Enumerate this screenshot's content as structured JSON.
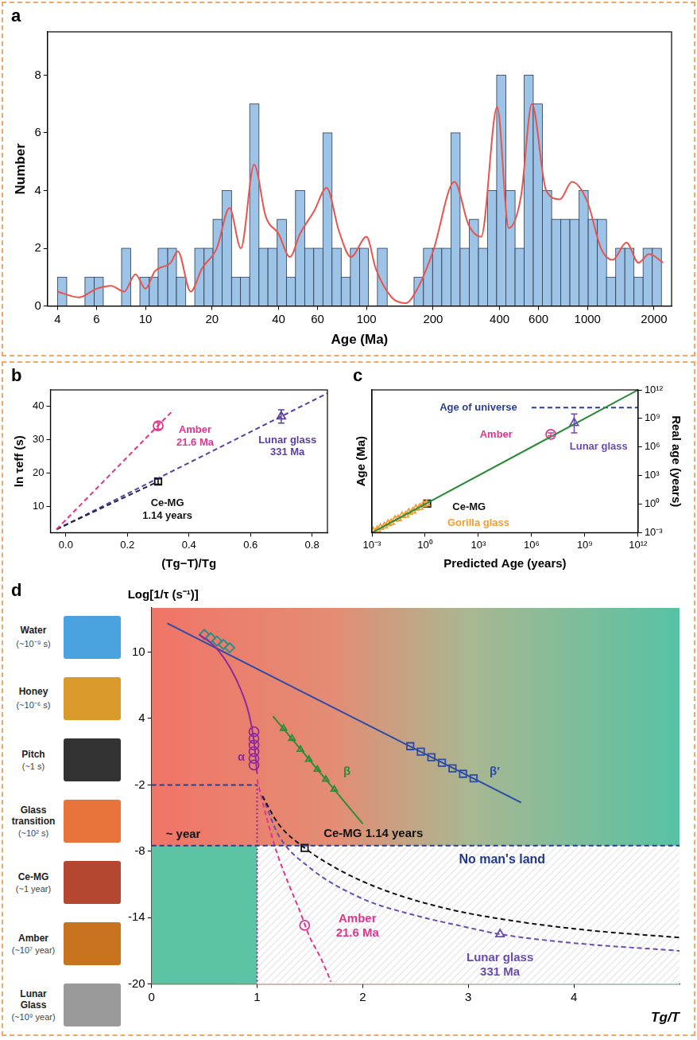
{
  "chart_data": [
    {
      "type": "histogram",
      "title": "a",
      "xlabel": "Age (Ma)",
      "ylabel": "Number",
      "log": "x",
      "grid": false,
      "bins": [
        4.0,
        4.4,
        4.84,
        5.32,
        5.86,
        6.44,
        7.09,
        7.79,
        8.57,
        9.43,
        10.4,
        11.4,
        12.6,
        13.8,
        15.2,
        16.7,
        18.4,
        20.2,
        22.2,
        24.5,
        26.9,
        29.6,
        32.6,
        35.8,
        39.4,
        43.4,
        47.7,
        52.5,
        57.7,
        63.5,
        69.8,
        76.8,
        84.5,
        93.0,
        102,
        112,
        124,
        136,
        150,
        164,
        181,
        199,
        219,
        241,
        265,
        292,
        321,
        353,
        388,
        427,
        470,
        517,
        568,
        625,
        688,
        757,
        832,
        916,
        1007,
        1108,
        1219,
        1341,
        1475,
        1622,
        1784,
        1963,
        2159
      ],
      "values": [
        1,
        0,
        0,
        1,
        1,
        0,
        0,
        2,
        0,
        1,
        1,
        2,
        2,
        1,
        0,
        2,
        2,
        3,
        4,
        1,
        1,
        7,
        2,
        2,
        3,
        1,
        4,
        2,
        2,
        6,
        2,
        1,
        2,
        2,
        0,
        2,
        0,
        0,
        0,
        1,
        2,
        2,
        2,
        6,
        2,
        3,
        2,
        4,
        8,
        4,
        2,
        8,
        7,
        4,
        3,
        3,
        3,
        4,
        3,
        3,
        1,
        2,
        2,
        1,
        2,
        2
      ],
      "color": "#9dc3e6",
      "series": [
        {
          "type": "line",
          "color": "#e8544e",
          "x": [
            4,
            5,
            6,
            7,
            8,
            9,
            10,
            11,
            13,
            14,
            16,
            18,
            21,
            24,
            27,
            31,
            35,
            40,
            45,
            50,
            58,
            66,
            75,
            85,
            100,
            110,
            130,
            150,
            170,
            200,
            250,
            290,
            330,
            390,
            440,
            500,
            560,
            650,
            750,
            850,
            1000,
            1150,
            1300,
            1500,
            1700,
            1900,
            2200
          ],
          "values": [
            0.5,
            0.3,
            0.6,
            0.7,
            0.5,
            1.1,
            0.6,
            1.2,
            1.5,
            1.9,
            0.5,
            1.3,
            2.0,
            3.4,
            2.0,
            4.9,
            3.1,
            2.5,
            1.7,
            2.5,
            3.3,
            4.1,
            2.6,
            1.7,
            2.4,
            1.3,
            0.3,
            0.1,
            0.6,
            1.9,
            4.3,
            2.8,
            2.4,
            6.9,
            2.7,
            3.8,
            7.0,
            4.0,
            3.7,
            4.3,
            3.6,
            2.0,
            1.6,
            2.2,
            1.5,
            1.8,
            1.5
          ]
        }
      ],
      "xlim": [
        3.6,
        2400
      ],
      "xticks": [
        4,
        6,
        10,
        20,
        40,
        60,
        100,
        200,
        400,
        600,
        1000,
        2000
      ],
      "ylim": [
        0,
        9.5
      ],
      "yticks": [
        0,
        2,
        4,
        6,
        8
      ]
    },
    {
      "type": "scatter",
      "title": "b",
      "xlabel": "(Tg−T)/Tg",
      "ylabel": "ln τeff (s)",
      "grid": false,
      "xlim": [
        -0.05,
        0.85
      ],
      "xticks": [
        {
          "value": 0,
          "label": "0.0"
        },
        0.2,
        0.4,
        0.6,
        0.8
      ],
      "ylim": [
        2,
        45
      ],
      "yticks": [
        10,
        20,
        30,
        40
      ],
      "series": [
        {
          "type": "line",
          "line_style": "dashed",
          "color": "#e0358f",
          "x": [
            -0.03,
            0.35
          ],
          "values": [
            3,
            39
          ]
        },
        {
          "type": "line",
          "line_style": "dashed",
          "color": "#222244",
          "x": [
            -0.03,
            0.3
          ],
          "values": [
            3,
            17.4
          ]
        },
        {
          "type": "line",
          "line_style": "dashed",
          "color": "#5a3fa0",
          "x": [
            -0.03,
            0.85
          ],
          "values": [
            3,
            44
          ]
        },
        {
          "type": "scatter",
          "marker": "circle",
          "color": "#e0358f",
          "x": [
            0.3
          ],
          "values": [
            34.2
          ],
          "error": [
            1.0
          ]
        },
        {
          "type": "scatter",
          "marker": "square",
          "color": "#111111",
          "x": [
            0.3
          ],
          "values": [
            17.4
          ],
          "error": [
            0.8
          ]
        },
        {
          "type": "scatter",
          "marker": "triangle",
          "color": "#5a3fa0",
          "x": [
            0.7
          ],
          "values": [
            37
          ],
          "error": [
            2.0
          ]
        }
      ],
      "annotations": [
        {
          "text": "Amber\n21.6 Ma",
          "x": 0.42,
          "y": 31,
          "color": "#e0358f"
        },
        {
          "text": "Ce-MG\n1.14 years",
          "x": 0.33,
          "y": 9,
          "color": "#111111"
        },
        {
          "text": "Lunar glass\n331 Ma",
          "x": 0.72,
          "y": 28,
          "color": "#5a3fa0"
        }
      ]
    },
    {
      "type": "scatter",
      "title": "c",
      "log": true,
      "grid": false,
      "xlabel": "Predicted Age (years)",
      "ylabel": "Age (Ma)",
      "y2label": "Real age (years)",
      "xlim": [
        0.001,
        1000000000000
      ],
      "xticks": [
        {
          "value": 0.001,
          "label": "10⁻³"
        },
        {
          "value": 1,
          "label": "10⁰"
        },
        {
          "value": 1000,
          "label": "10³"
        },
        {
          "value": 1000000,
          "label": "10⁶"
        },
        {
          "value": 1000000000,
          "label": "10⁹"
        },
        {
          "value": 1000000000000,
          "label": "10¹²"
        }
      ],
      "y2lim": [
        0.001,
        1000000000000
      ],
      "y2ticks": [
        {
          "value": 0.001,
          "label": "10⁻³"
        },
        {
          "value": 1,
          "label": "10⁰"
        },
        {
          "value": 1000,
          "label": "10³"
        },
        {
          "value": 1000000,
          "label": "10⁶"
        },
        {
          "value": 1000000000,
          "label": "10⁹"
        },
        {
          "value": 1000000000000,
          "label": "10¹²"
        }
      ],
      "series": [
        {
          "type": "line",
          "color": "#2e8b3a",
          "axis": "y2",
          "x": [
            0.001,
            1000000000000
          ],
          "values": [
            0.001,
            1000000000000
          ]
        },
        {
          "type": "line",
          "line_style": "dashed",
          "color": "#2b3f8f",
          "axis": "y2",
          "x": [
            1000000,
            1000000000000
          ],
          "values": [
            13800000000,
            13800000000
          ]
        },
        {
          "type": "scatter",
          "marker": "triangle",
          "color": "#f39c32",
          "axis": "y2",
          "x": [
            0.0012,
            0.002,
            0.003,
            0.005,
            0.008,
            0.012,
            0.02,
            0.03,
            0.05,
            0.08,
            0.12,
            0.2,
            0.3,
            0.5,
            0.8,
            1.2
          ],
          "values": [
            0.0015,
            0.002,
            0.0035,
            0.005,
            0.009,
            0.011,
            0.025,
            0.03,
            0.06,
            0.07,
            0.14,
            0.18,
            0.35,
            0.45,
            0.9,
            1.1
          ]
        },
        {
          "type": "scatter",
          "marker": "square",
          "color": "#111111",
          "axis": "y2",
          "x": [
            1.3
          ],
          "values": [
            1.14
          ]
        },
        {
          "type": "scatter",
          "marker": "circle",
          "color": "#e0358f",
          "axis": "y2",
          "x": [
            12000000
          ],
          "values": [
            21600000
          ],
          "error_range": [
            [
              15000000,
              30000000
            ]
          ]
        },
        {
          "type": "scatter",
          "marker": "triangle",
          "color": "#6a4bb0",
          "axis": "y2",
          "x": [
            250000000
          ],
          "values": [
            331000000
          ],
          "error_range": [
            [
              30000000,
              3000000000
            ]
          ]
        }
      ],
      "annotations": [
        {
          "text": "Age of universe",
          "x": 1000,
          "y": 13800000000,
          "color": "#2b3f8f"
        },
        {
          "text": "Amber",
          "x": 10000,
          "y": 20000000,
          "color": "#e0358f"
        },
        {
          "text": "Lunar glass",
          "x": 6000000000,
          "y": 1000000,
          "color": "#6a4bb0"
        },
        {
          "text": "Ce-MG",
          "x": 300,
          "y": 0.5,
          "color": "#111111"
        },
        {
          "text": "Gorilla glass",
          "x": 1000,
          "y": 0.01,
          "color": "#f39c32"
        }
      ]
    },
    {
      "type": "line",
      "title": "d",
      "xlabel": "Tg/T",
      "ylabel": "Log[1/τ (s⁻¹)]",
      "grid": false,
      "xlim": [
        0,
        5
      ],
      "xticks": [
        0,
        1,
        2,
        3,
        4
      ],
      "ylim": [
        -20,
        14
      ],
      "yticks": [
        -20,
        -14,
        -8,
        -2,
        4,
        10
      ],
      "region": {
        "text": "No man's land",
        "x": [
          1,
          5
        ],
        "y": [
          -20,
          -7.5
        ]
      },
      "series": [
        {
          "type": "line",
          "line_style": "dashed",
          "color": "#2b3f8f",
          "x": [
            0,
            1
          ],
          "values": [
            -2,
            -2
          ]
        },
        {
          "type": "line",
          "line_style": "dashed",
          "color": "#2b3f8f",
          "x": [
            0,
            5
          ],
          "values": [
            -7.5,
            -7.5
          ]
        },
        {
          "type": "line",
          "line_style": "dotted",
          "color": "#8e2a9c",
          "x": [
            1,
            1
          ],
          "values": [
            -2,
            -20
          ]
        },
        {
          "type": "line",
          "color": "#8e2a9c",
          "x": [
            0.45,
            0.6,
            0.75,
            0.85,
            0.92,
            0.97,
            1.0
          ],
          "values": [
            11.6,
            10.5,
            8.5,
            6.5,
            4.5,
            2,
            -1
          ]
        },
        {
          "type": "line",
          "color": "#2e8b3a",
          "x": [
            1.15,
            2.0
          ],
          "values": [
            4.2,
            -5.5
          ]
        },
        {
          "type": "line",
          "color": "#2c4aa8",
          "x": [
            0.15,
            3.5
          ],
          "values": [
            12.6,
            -3.6
          ]
        },
        {
          "type": "line",
          "line_style": "dashed",
          "color": "#e0358f",
          "x": [
            1.0,
            1.05,
            1.12,
            1.2,
            1.3,
            1.4,
            1.5,
            1.6,
            1.7
          ],
          "values": [
            -1.5,
            -3.5,
            -6,
            -8.5,
            -11,
            -13.3,
            -15.8,
            -17.6,
            -19.8
          ]
        },
        {
          "type": "line",
          "line_style": "dashed",
          "color": "#111111",
          "x": [
            1.05,
            1.2,
            1.45,
            1.8,
            2.2,
            2.8,
            3.5,
            4.2,
            5
          ],
          "values": [
            -3,
            -5.5,
            -7.7,
            -9.8,
            -11.5,
            -13.2,
            -14.4,
            -15.2,
            -15.8
          ]
        },
        {
          "type": "line",
          "line_style": "dashed",
          "color": "#6a4bb0",
          "x": [
            1.05,
            1.2,
            1.5,
            2,
            2.5,
            3,
            3.3,
            4,
            5
          ],
          "values": [
            -3,
            -6.5,
            -9.5,
            -12.3,
            -13.8,
            -14.9,
            -15.5,
            -16.3,
            -17
          ]
        },
        {
          "type": "scatter",
          "marker": "ellipse",
          "color": "#8e2a9c",
          "x": [
            0.97,
            0.97,
            0.97,
            0.97,
            0.97,
            0.97
          ],
          "values": [
            2.8,
            2.2,
            1.6,
            1.0,
            0.4,
            -0.2
          ]
        },
        {
          "type": "scatter",
          "marker": "triangle",
          "color": "#2e8b3a",
          "x": [
            1.25,
            1.33,
            1.41,
            1.49,
            1.57,
            1.65,
            1.73
          ],
          "values": [
            3.1,
            2.2,
            1.2,
            0.3,
            -0.6,
            -1.5,
            -2.4
          ]
        },
        {
          "type": "scatter",
          "marker": "square",
          "color": "#2c4aa8",
          "x": [
            2.45,
            2.55,
            2.65,
            2.75,
            2.85,
            2.95,
            3.05
          ],
          "values": [
            1.5,
            1.0,
            0.5,
            0.0,
            -0.5,
            -1.0,
            -1.4
          ]
        },
        {
          "type": "scatter",
          "marker": "diamond",
          "color": "#1f8f8a",
          "x": [
            0.5,
            0.56,
            0.62,
            0.68,
            0.74
          ],
          "values": [
            11.6,
            11.3,
            11.0,
            10.7,
            10.4
          ]
        },
        {
          "type": "scatter",
          "marker": "square",
          "color": "#111111",
          "x": [
            1.45
          ],
          "values": [
            -7.7
          ]
        },
        {
          "type": "scatter",
          "marker": "circle",
          "color": "#e0358f",
          "x": [
            1.45
          ],
          "values": [
            -14.7
          ]
        },
        {
          "type": "scatter",
          "marker": "triangle",
          "color": "#6a4bb0",
          "x": [
            3.3
          ],
          "values": [
            -15.5
          ]
        }
      ],
      "annotations": [
        {
          "text": "α",
          "x": 0.85,
          "y": 0.5,
          "color": "#8e2a9c"
        },
        {
          "text": "β",
          "x": 1.85,
          "y": -0.8,
          "color": "#2e8b3a"
        },
        {
          "text": "β′",
          "x": 3.25,
          "y": -0.8,
          "color": "#2c4aa8"
        },
        {
          "text": "~ year",
          "x": 0.3,
          "y": -6.5,
          "color": "#111111"
        },
        {
          "text": "Ce-MG 1.14 years",
          "x": 2.1,
          "y": -6.4,
          "color": "#111111"
        },
        {
          "text": "Amber\n21.6 Ma",
          "x": 1.95,
          "y": -14.8,
          "color": "#e0358f"
        },
        {
          "text": "Lunar glass\n331 Ma",
          "x": 3.3,
          "y": -18.3,
          "color": "#6a4bb0"
        }
      ],
      "items": [
        {
          "text": "Water",
          "note": "(~10⁻⁹ s)"
        },
        {
          "text": "Honey",
          "note": "(~10⁻⁶ s)"
        },
        {
          "text": "Pitch",
          "note": "(~1 s)"
        },
        {
          "text": "Glass transition",
          "note": "(~10² s)"
        },
        {
          "text": "Ce-MG",
          "note": "(~1 year)"
        },
        {
          "text": "Amber",
          "note": "(~10⁷ year)"
        },
        {
          "text": "Lunar Glass",
          "note": "(~10⁹ year)"
        }
      ]
    }
  ]
}
